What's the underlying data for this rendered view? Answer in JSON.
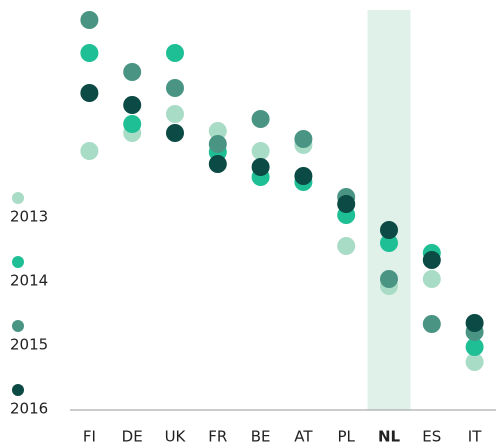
{
  "chart_data": {
    "type": "dot",
    "categories": [
      "FI",
      "DE",
      "UK",
      "FR",
      "BE",
      "AT",
      "PL",
      "NL",
      "ES",
      "IT"
    ],
    "highlight": "NL",
    "ylim": [
      0,
      100
    ],
    "series": [
      {
        "name": "2013",
        "color": "#a9dcc7",
        "values": [
          64.75,
          69.25,
          74,
          69.75,
          64.75,
          66.25,
          41,
          31,
          32.75,
          12
        ]
      },
      {
        "name": "2014",
        "color": "#1fbf95",
        "values": [
          89.25,
          71.5,
          89.25,
          64.5,
          58.25,
          57,
          48.75,
          41.75,
          39.25,
          15.75
        ]
      },
      {
        "name": "2015",
        "color": "#4a9484",
        "values": [
          97.5,
          84.5,
          80.5,
          66.5,
          72.75,
          67.75,
          53.25,
          32.75,
          21.5,
          19.5
        ]
      },
      {
        "name": "2016",
        "color": "#0b4a45",
        "values": [
          79.25,
          76.25,
          69.25,
          61.5,
          60.75,
          58.5,
          51.5,
          45,
          37.5,
          21.75
        ]
      }
    ]
  }
}
